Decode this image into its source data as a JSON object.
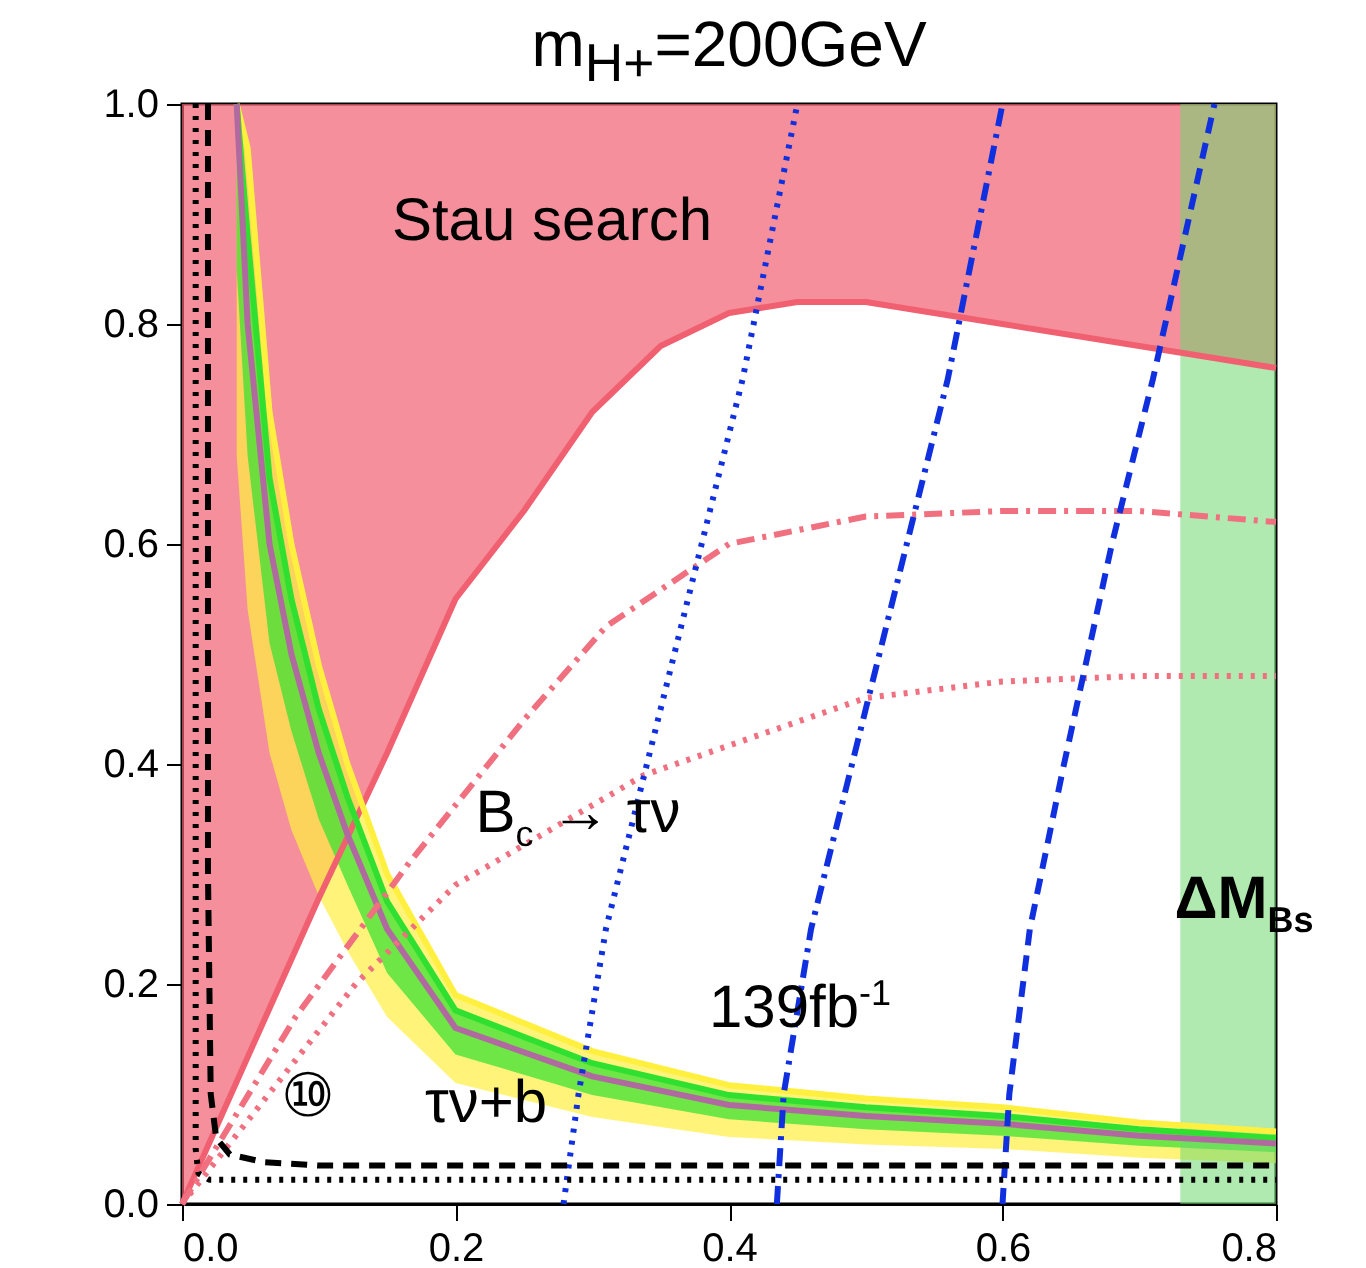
{
  "chart_data": {
    "type": "line",
    "title": "m$_{H+}$=200GeV",
    "xlim": [
      0,
      0.8
    ],
    "ylim": [
      0,
      1.0
    ],
    "xticks": [
      {
        "value": 0,
        "label": "0.0"
      },
      0.2,
      0.4,
      0.6,
      0.8
    ],
    "yticks": [
      {
        "value": 0,
        "label": "0.0"
      },
      0.2,
      0.4,
      0.6,
      0.8,
      {
        "value": 1,
        "label": "1.0"
      }
    ],
    "grid": false,
    "marker": "none",
    "series": [
      {
        "type": "line",
        "color": "#f06070",
        "line_style": "solid",
        "x": [
          0,
          0.1,
          0.15,
          0.2,
          0.25,
          0.3,
          0.35,
          0.4,
          0.45,
          0.5,
          0.6,
          0.7,
          0.8
        ],
        "values": [
          0,
          0.278,
          0.41,
          0.55,
          0.63,
          0.72,
          0.78,
          0.81,
          0.82,
          0.82,
          0.8,
          0.78,
          0.76
        ],
        "lower": [
          0,
          0.278,
          0.41,
          0.55,
          0.63,
          0.72,
          0.78,
          0.81,
          0.82,
          0.82,
          0.8,
          0.78,
          0.76
        ],
        "upper": [
          1,
          1,
          1,
          1,
          1,
          1,
          1,
          1,
          1,
          1,
          1,
          1,
          1
        ]
      },
      {
        "type": "line",
        "color": "#fff040",
        "line_style": "solid",
        "x": [
          0.04,
          0.048,
          0.064,
          0.08,
          0.1,
          0.121,
          0.15,
          0.2,
          0.3,
          0.4,
          0.5,
          0.6,
          0.7,
          0.8
        ],
        "values": [
          1.0,
          0.96,
          0.72,
          0.6,
          0.49,
          0.4,
          0.3,
          0.19,
          0.139,
          0.108,
          0.096,
          0.088,
          0.074,
          0.066
        ],
        "lower": [
          0.68,
          0.54,
          0.41,
          0.34,
          0.28,
          0.23,
          0.17,
          0.11,
          0.079,
          0.061,
          0.054,
          0.05,
          0.042,
          0.037
        ],
        "upper": [
          1.0,
          0.96,
          0.72,
          0.6,
          0.49,
          0.4,
          0.3,
          0.19,
          0.139,
          0.108,
          0.096,
          0.088,
          0.074,
          0.066
        ]
      },
      {
        "type": "line",
        "color": "#30e030",
        "line_style": "solid",
        "x": [
          0.04,
          0.048,
          0.064,
          0.08,
          0.1,
          0.121,
          0.15,
          0.2,
          0.3,
          0.4,
          0.5,
          0.6,
          0.7,
          0.8
        ],
        "values": [
          1.0,
          0.88,
          0.66,
          0.55,
          0.45,
          0.37,
          0.275,
          0.176,
          0.128,
          0.099,
          0.088,
          0.08,
          0.068,
          0.06
        ],
        "lower": [
          0.85,
          0.68,
          0.51,
          0.43,
          0.35,
          0.29,
          0.21,
          0.136,
          0.099,
          0.077,
          0.068,
          0.062,
          0.053,
          0.047
        ],
        "upper": [
          1.0,
          0.88,
          0.66,
          0.55,
          0.45,
          0.37,
          0.275,
          0.176,
          0.128,
          0.099,
          0.088,
          0.08,
          0.068,
          0.06
        ]
      },
      {
        "type": "line",
        "color": "#b06aa0",
        "line_style": "solid",
        "x": [
          0.04,
          0.048,
          0.064,
          0.08,
          0.1,
          0.121,
          0.15,
          0.2,
          0.3,
          0.4,
          0.5,
          0.6,
          0.7,
          0.8
        ],
        "values": [
          1.0,
          0.8,
          0.6,
          0.5,
          0.41,
          0.336,
          0.25,
          0.16,
          0.116,
          0.09,
          0.08,
          0.073,
          0.062,
          0.055
        ]
      },
      {
        "type": "line",
        "color": "#f07080",
        "line_style": "dashdot",
        "x": [
          0,
          0.083,
          0.166,
          0.25,
          0.31,
          0.4,
          0.5,
          0.6,
          0.7,
          0.8
        ],
        "values": [
          0,
          0.17,
          0.31,
          0.44,
          0.525,
          0.6,
          0.625,
          0.63,
          0.63,
          0.62
        ]
      },
      {
        "type": "line",
        "color": "#f07080",
        "line_style": "dotted",
        "x": [
          0,
          0.127,
          0.2,
          0.338,
          0.5,
          0.6,
          0.7,
          0.8
        ],
        "values": [
          0,
          0.2,
          0.29,
          0.39,
          0.46,
          0.475,
          0.48,
          0.48
        ]
      },
      {
        "type": "line",
        "color": "#1030e0",
        "line_style": "dotted",
        "x": [
          0.279,
          0.29,
          0.31,
          0.34,
          0.38,
          0.41,
          0.45
        ],
        "values": [
          0,
          0.1,
          0.25,
          0.4,
          0.6,
          0.75,
          1.0
        ]
      },
      {
        "type": "line",
        "color": "#1030e0",
        "line_style": "dashdot",
        "x": [
          0.435,
          0.44,
          0.46,
          0.49,
          0.53,
          0.56,
          0.6
        ],
        "values": [
          0,
          0.1,
          0.25,
          0.4,
          0.6,
          0.75,
          1.0
        ]
      },
      {
        "type": "line",
        "color": "#1030e0",
        "line_style": "dashed",
        "x": [
          0.6,
          0.605,
          0.62,
          0.645,
          0.68,
          0.71,
          0.755
        ],
        "values": [
          0,
          0.1,
          0.25,
          0.4,
          0.6,
          0.75,
          1.0
        ]
      },
      {
        "type": "line",
        "color": "#000000",
        "line_style": "dashed",
        "x": [
          0.019,
          0.019,
          0.021,
          0.025,
          0.035,
          0.06,
          0.1,
          0.3,
          0.5,
          0.8
        ],
        "values": [
          1.0,
          0.3,
          0.1,
          0.06,
          0.045,
          0.038,
          0.035,
          0.035,
          0.035,
          0.035
        ]
      },
      {
        "type": "line",
        "color": "#000000",
        "line_style": "dotted",
        "x": [
          0.01,
          0.01,
          0.012,
          0.02,
          0.8
        ],
        "values": [
          1.0,
          0.05,
          0.028,
          0.022,
          0.022
        ]
      }
    ],
    "bands": [
      {
        "axis": "x",
        "from": 0.73,
        "to": 0.8,
        "color": "#70d870"
      }
    ],
    "annotations": [
      "Stau search",
      "B$_{c}$ → τν",
      "ΔM$_{Bs}$",
      "139fb$^{-1}$",
      "⑩",
      "τν+b"
    ]
  }
}
